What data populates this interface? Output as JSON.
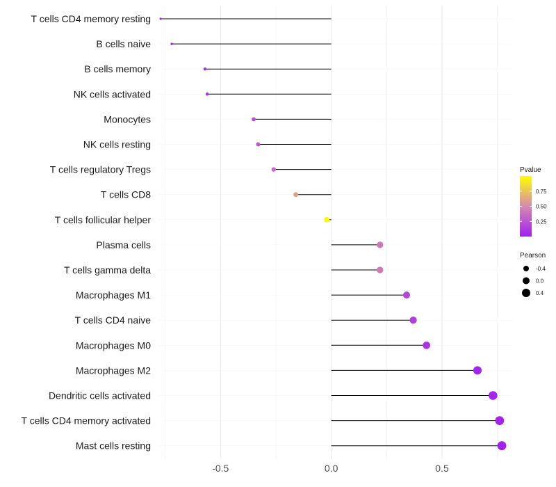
{
  "chart_data": {
    "type": "lollipop",
    "categories": [
      "T cells CD4 memory resting",
      "B cells naive",
      "B cells memory",
      "NK cells activated",
      "Monocytes",
      "NK cells resting",
      "T cells regulatory  Tregs ",
      "T cells CD8",
      "T cells follicular helper",
      "Plasma cells",
      "T cells gamma delta",
      "Macrophages M1",
      "T cells CD4 naive",
      "Macrophages M0",
      "Macrophages M2",
      "Dendritic cells activated",
      "T cells CD4 memory activated",
      "Mast cells resting"
    ],
    "values": [
      -0.77,
      -0.72,
      -0.57,
      -0.56,
      -0.35,
      -0.33,
      -0.26,
      -0.16,
      -0.02,
      0.22,
      0.22,
      0.34,
      0.37,
      0.43,
      0.66,
      0.73,
      0.76,
      0.77
    ],
    "pvalues": [
      0.02,
      0.02,
      0.07,
      0.08,
      0.22,
      0.25,
      0.35,
      0.6,
      0.98,
      0.42,
      0.42,
      0.18,
      0.15,
      0.1,
      0.03,
      0.02,
      0.02,
      0.01
    ],
    "xlim": [
      -0.78,
      0.82
    ],
    "xticks": [
      -0.5,
      0.0,
      0.5
    ],
    "xtick_labels": [
      "-0.5",
      "0.0",
      "0.5"
    ],
    "xlabel": "",
    "ylabel": "",
    "grid": true,
    "legend": {
      "color": {
        "title": "Pvalue",
        "ticks": [
          0.75,
          0.5,
          0.25
        ],
        "tick_labels": [
          "0.75",
          "0.50",
          "0.25"
        ],
        "range": [
          0.0,
          1.0
        ],
        "low_color": "#a020f0",
        "mid_color": "#d58ab0",
        "high_color": "#ffff00"
      },
      "size": {
        "title": "Pearson",
        "entries": [
          {
            "label": "-0.4",
            "value": -0.4
          },
          {
            "label": "0.0",
            "value": 0.0
          },
          {
            "label": "0.4",
            "value": 0.4
          }
        ]
      }
    }
  }
}
